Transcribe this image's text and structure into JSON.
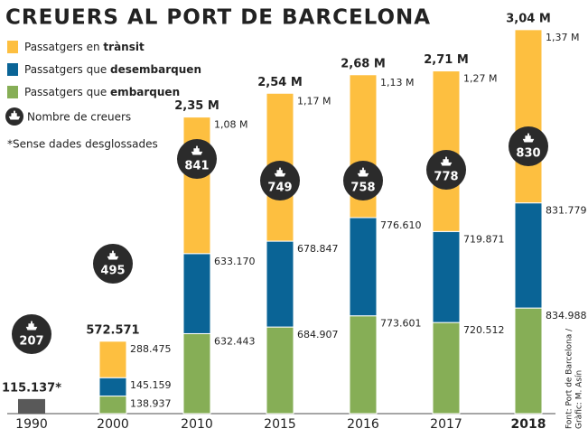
{
  "chart_data": {
    "type": "stacked-bar",
    "title": "CREUERS AL PORT DE BARCELONA",
    "categories": [
      "1990",
      "2000",
      "2010",
      "2015",
      "2016",
      "2017",
      "2018"
    ],
    "series": [
      {
        "name": "Passatgers que embarquen",
        "color": "#86ae56",
        "values": [
          null,
          138937,
          632443,
          684907,
          773601,
          720512,
          834988
        ],
        "value_labels": [
          null,
          "138.937",
          "632.443",
          "684.907",
          "773.601",
          "720.512",
          "834.988"
        ]
      },
      {
        "name": "Passatgers que desembarquen",
        "color": "#0a6496",
        "values": [
          null,
          145159,
          633170,
          678847,
          776610,
          719871,
          831779
        ],
        "value_labels": [
          null,
          "145.159",
          "633.170",
          "678.847",
          "776.610",
          "719.871",
          "831.779"
        ]
      },
      {
        "name": "Passatgers en trànsit",
        "color": "#fdbf40",
        "values": [
          null,
          288475,
          1080000,
          1170000,
          1130000,
          1270000,
          1370000
        ],
        "value_labels": [
          null,
          "288.475",
          "1,08 M",
          "1,17 M",
          "1,13 M",
          "1,27 M",
          "1,37 M"
        ]
      }
    ],
    "totals": {
      "color": "#595959",
      "values": [
        115137,
        572571,
        2350000,
        2540000,
        2680000,
        2710000,
        3040000
      ],
      "value_labels": [
        "115.137*",
        "572.571",
        "2,35 M",
        "2,54 M",
        "2,68 M",
        "2,71 M",
        "3,04 M"
      ]
    },
    "cruises": {
      "name": "Nombre de creuers",
      "color": "#2b2b2b",
      "values": [
        207,
        495,
        841,
        749,
        758,
        778,
        830
      ]
    },
    "note": "*Sense dades desglossades",
    "source": [
      "Font: Port de Barcelona /",
      "Gràfic: M. Asín"
    ]
  }
}
